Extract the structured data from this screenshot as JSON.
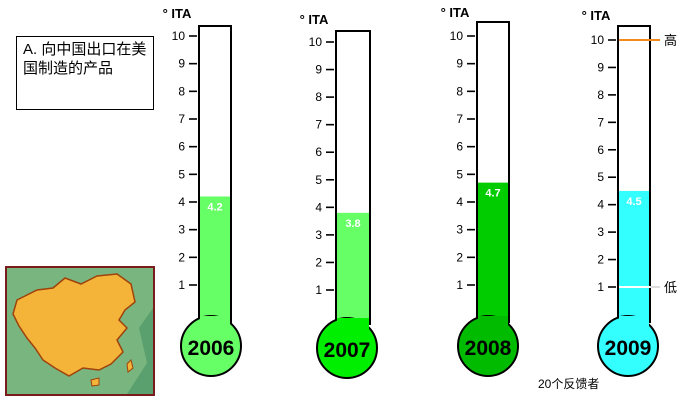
{
  "question_box": {
    "text": "A. 向中国出口在美国制造的产品"
  },
  "footnote": "20个反馈者",
  "map": {
    "icon": "china-map-icon",
    "land_color": "#f4b43a",
    "sea_color": "#5aa06e"
  },
  "chart_data": {
    "type": "bar",
    "unit_label": "° ITA",
    "categories": [
      "2006",
      "2007",
      "2008",
      "2009"
    ],
    "values": [
      4.2,
      3.8,
      4.7,
      4.5
    ],
    "colors": [
      "#66ff66",
      "#66ff66",
      "#00cc00",
      "#33ffff"
    ],
    "bulb_colors": [
      "#66ff66",
      "#00ee00",
      "#00bb00",
      "#33ffff"
    ],
    "ticks": [
      1,
      2,
      3,
      4,
      5,
      6,
      7,
      8,
      9,
      10
    ],
    "ylim": [
      0,
      10
    ],
    "annotations": {
      "high": "高",
      "low": "低",
      "high_value": 10,
      "low_value": 1
    }
  }
}
